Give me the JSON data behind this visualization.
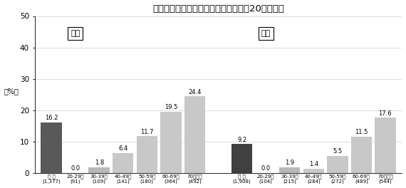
{
  "title": "「糖尿病が強く疑われる者」の割合（20歳以上）",
  "ylabel": "（%）",
  "ylim": [
    0,
    50
  ],
  "yticks": [
    0,
    10,
    20,
    30,
    40,
    50
  ],
  "male_label": "男性",
  "female_label": "女性",
  "categories_male": [
    "総 数\n(1,377)",
    "20-29歳\n(91)",
    "30-39歳\n(109)",
    "40-49歳\n(141)",
    "50-59歳\n(180)",
    "60-69歳\n(364)",
    "70歳以上\n(492)"
  ],
  "categories_female": [
    "総 数\n(1,908)",
    "20-29歳\n(104)",
    "30-39歳\n(215)",
    "40-49歳\n(284)",
    "50-59歳\n(272)",
    "60-69歳\n(489)",
    "70歳以上\n(544)"
  ],
  "values_male": [
    16.2,
    0.0,
    1.8,
    6.4,
    11.7,
    19.5,
    24.4
  ],
  "values_female": [
    9.2,
    0.0,
    1.9,
    1.4,
    5.5,
    11.5,
    17.6
  ],
  "bar_colors_male": [
    "#595959",
    "#b8b8b8",
    "#b8b8b8",
    "#c8c8c8",
    "#c8c8c8",
    "#c8c8c8",
    "#c8c8c8"
  ],
  "bar_colors_female": [
    "#404040",
    "#b8b8b8",
    "#b8b8b8",
    "#c8c8c8",
    "#c8c8c8",
    "#c8c8c8",
    "#c8c8c8"
  ],
  "label_fontsize": 6.0,
  "tick_fontsize": 5.0,
  "title_fontsize": 9.5,
  "ylabel_fontsize": 7.0,
  "legend_fontsize": 8.0
}
